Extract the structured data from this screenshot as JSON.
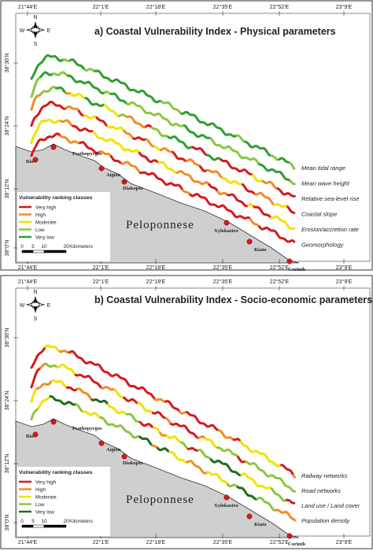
{
  "panels": [
    {
      "title": "a) Coastal Vulnerability Index  - Physical parameters",
      "layers": [
        "Mean tidal range",
        "Mean wave height",
        "Relative sea-level rise",
        "Coastal slope",
        "Erosion/accretion rate",
        "Geomorphology"
      ],
      "legend": {
        "title": "Vulnerability ranking classes",
        "classes": [
          {
            "label": "Very high",
            "color": "#d7191c"
          },
          {
            "label": "High",
            "color": "#f28c28"
          },
          {
            "label": "Moderate",
            "color": "#f2e200"
          },
          {
            "label": "Low",
            "color": "#8cc63f"
          },
          {
            "label": "Very low",
            "color": "#2e9e32"
          }
        ]
      }
    },
    {
      "title": "b) Coastal Vulnerability Index  - Socio-economic parameters",
      "layers": [
        "Railway networks",
        "Road networks",
        "Land use / Land cover",
        "Population density"
      ],
      "legend": {
        "title": "Vulnerability ranking classes",
        "classes": [
          {
            "label": "Very high",
            "color": "#d7191c"
          },
          {
            "label": "High",
            "color": "#f28c28"
          },
          {
            "label": "Moderate",
            "color": "#f2e200"
          },
          {
            "label": "Low",
            "color": "#8cc63f"
          },
          {
            "label": "Very low",
            "color": "#1d6b1f"
          }
        ]
      }
    }
  ],
  "lon_ticks": [
    "21°44'E",
    "22°1'E",
    "22°18'E",
    "22°35'E",
    "22°52'E",
    "23°9'E"
  ],
  "lat_ticks": [
    "38°36'N",
    "38°24'N",
    "38°12'N",
    "38°0'N"
  ],
  "compass": {
    "n": "N",
    "e": "E",
    "s": "S",
    "w": "W"
  },
  "towns": [
    "Rio",
    "Psathopyrgos",
    "Aigion",
    "Diakopto",
    "Xylokastro",
    "Kiato",
    "Corinth"
  ],
  "region": "Peloponnese",
  "scale": {
    "ticks": [
      0,
      5,
      10,
      20
    ],
    "unit": "Kilometers"
  }
}
